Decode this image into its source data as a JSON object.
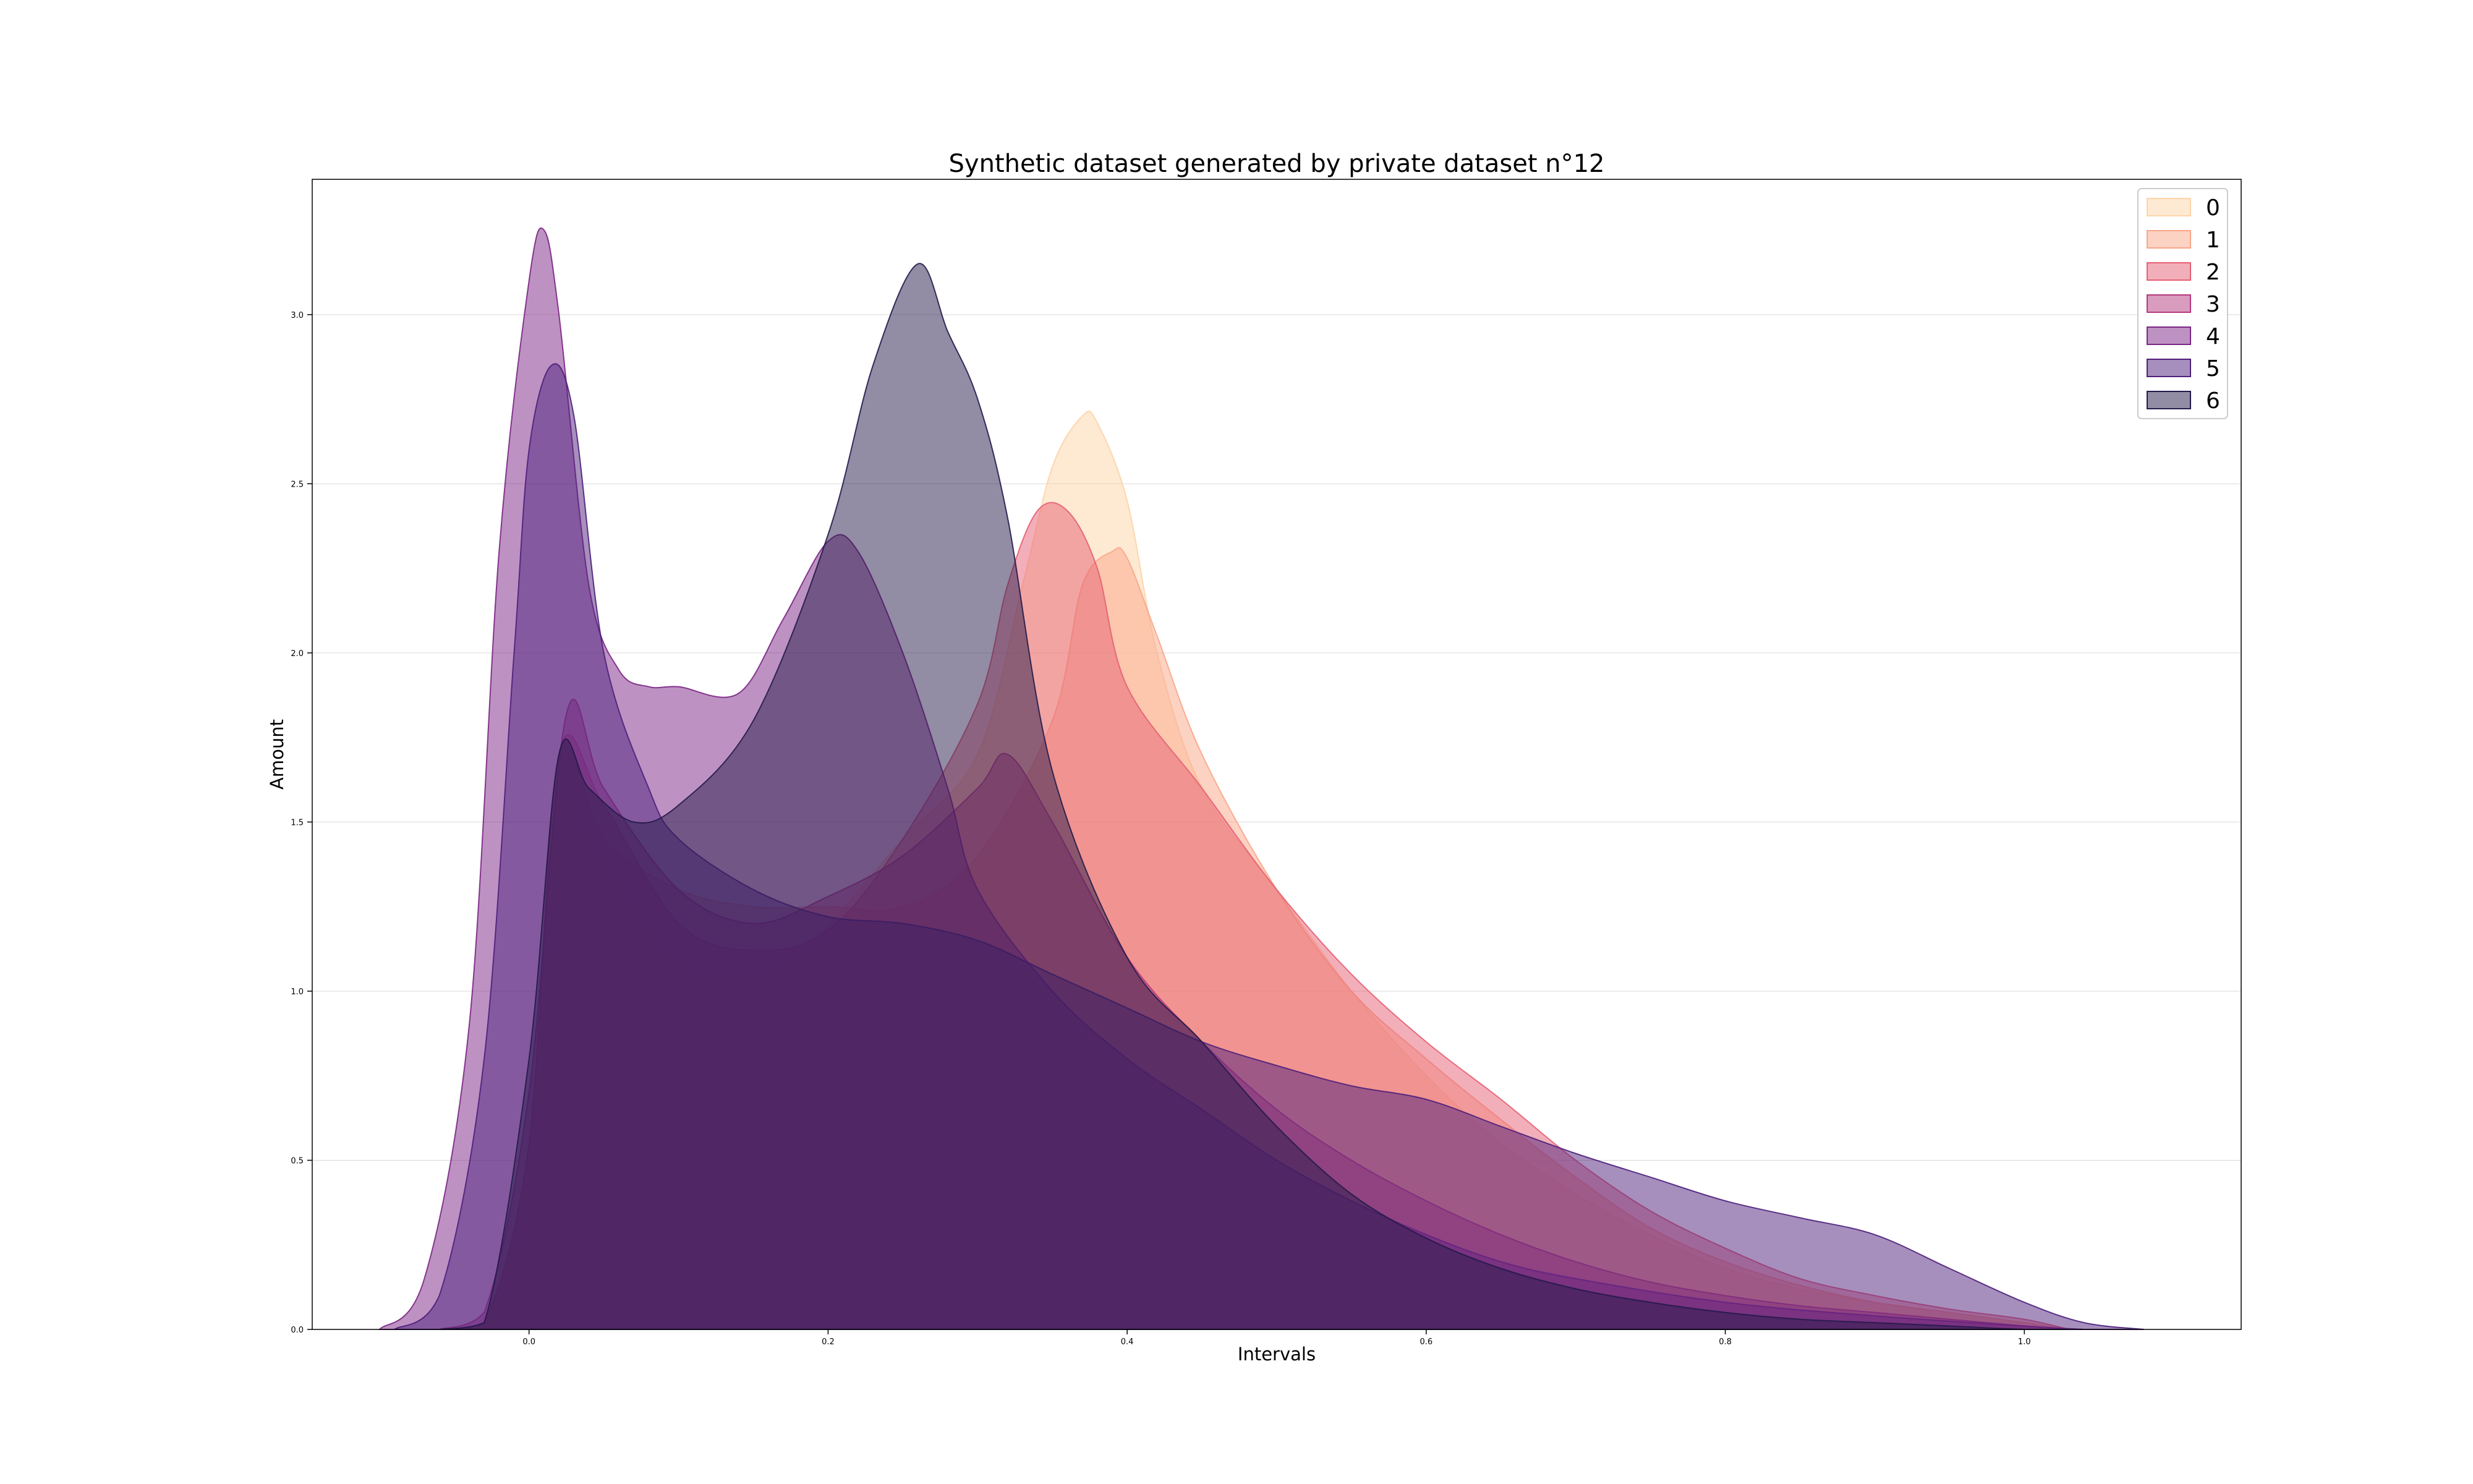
{
  "chart_data": {
    "type": "area",
    "title": "Synthetic dataset generated by private dataset n°12",
    "xlabel": "Intervals",
    "ylabel": "Amount",
    "xlim": [
      -0.145,
      1.145
    ],
    "ylim": [
      0,
      3.4
    ],
    "xticks": [
      "0.0",
      "0.2",
      "0.4",
      "0.6",
      "0.8",
      "1.0"
    ],
    "yticks": [
      "0.0",
      "0.5",
      "1.0",
      "1.5",
      "2.0",
      "2.5",
      "3.0"
    ],
    "grid": "horizontal",
    "legend_position": "top-right",
    "series": [
      {
        "name": "0",
        "color": "#fdd4a8",
        "x": [
          -0.06,
          -0.03,
          0.0,
          0.02,
          0.05,
          0.1,
          0.15,
          0.2,
          0.25,
          0.3,
          0.33,
          0.35,
          0.37,
          0.38,
          0.4,
          0.42,
          0.45,
          0.5,
          0.55,
          0.6,
          0.65,
          0.7,
          0.75,
          0.8,
          0.85,
          0.9,
          0.95,
          1.0,
          1.03
        ],
        "y": [
          0.0,
          0.02,
          0.5,
          1.55,
          1.4,
          1.1,
          1.05,
          1.2,
          1.45,
          1.7,
          2.2,
          2.55,
          2.7,
          2.68,
          2.45,
          2.0,
          1.6,
          1.3,
          1.0,
          0.75,
          0.55,
          0.4,
          0.28,
          0.18,
          0.12,
          0.08,
          0.05,
          0.02,
          0.0
        ]
      },
      {
        "name": "1",
        "color": "#f9a688",
        "x": [
          -0.06,
          -0.03,
          0.0,
          0.02,
          0.05,
          0.1,
          0.15,
          0.2,
          0.25,
          0.3,
          0.35,
          0.37,
          0.39,
          0.4,
          0.42,
          0.45,
          0.5,
          0.55,
          0.6,
          0.65,
          0.7,
          0.75,
          0.8,
          0.85,
          0.9,
          0.95,
          1.0,
          1.03
        ],
        "y": [
          0.0,
          0.02,
          0.55,
          1.7,
          1.45,
          1.3,
          1.25,
          1.25,
          1.25,
          1.4,
          1.8,
          2.2,
          2.3,
          2.28,
          2.05,
          1.7,
          1.3,
          1.0,
          0.8,
          0.62,
          0.45,
          0.3,
          0.2,
          0.13,
          0.08,
          0.05,
          0.02,
          0.0
        ]
      },
      {
        "name": "2",
        "color": "#e55f73",
        "x": [
          -0.06,
          -0.03,
          0.0,
          0.02,
          0.05,
          0.1,
          0.15,
          0.2,
          0.25,
          0.3,
          0.32,
          0.34,
          0.36,
          0.38,
          0.4,
          0.45,
          0.5,
          0.55,
          0.6,
          0.65,
          0.7,
          0.75,
          0.8,
          0.85,
          0.9,
          0.95,
          1.0,
          1.03
        ],
        "y": [
          0.0,
          0.02,
          0.55,
          1.7,
          1.55,
          1.2,
          1.12,
          1.18,
          1.45,
          1.85,
          2.2,
          2.42,
          2.42,
          2.25,
          1.9,
          1.6,
          1.3,
          1.05,
          0.85,
          0.68,
          0.5,
          0.35,
          0.24,
          0.15,
          0.1,
          0.06,
          0.03,
          0.0
        ]
      },
      {
        "name": "3",
        "color": "#b4387e",
        "x": [
          -0.06,
          -0.03,
          0.0,
          0.025,
          0.05,
          0.1,
          0.15,
          0.2,
          0.25,
          0.3,
          0.32,
          0.35,
          0.4,
          0.45,
          0.5,
          0.55,
          0.6,
          0.65,
          0.7,
          0.75,
          0.8,
          0.85,
          0.9,
          0.95,
          1.0,
          1.03
        ],
        "y": [
          0.0,
          0.05,
          0.7,
          1.82,
          1.6,
          1.3,
          1.2,
          1.28,
          1.4,
          1.6,
          1.7,
          1.5,
          1.1,
          0.85,
          0.65,
          0.5,
          0.38,
          0.28,
          0.2,
          0.14,
          0.1,
          0.07,
          0.05,
          0.03,
          0.01,
          0.0
        ]
      },
      {
        "name": "4",
        "color": "#7c2585",
        "x": [
          -0.1,
          -0.07,
          -0.04,
          -0.02,
          0.0,
          0.01,
          0.02,
          0.04,
          0.06,
          0.08,
          0.1,
          0.14,
          0.17,
          0.2,
          0.22,
          0.25,
          0.28,
          0.3,
          0.35,
          0.4,
          0.45,
          0.5,
          0.55,
          0.6,
          0.65,
          0.7,
          0.8,
          0.9,
          1.0,
          1.04
        ],
        "y": [
          0.0,
          0.15,
          0.9,
          2.3,
          3.1,
          3.25,
          3.0,
          2.2,
          1.95,
          1.9,
          1.9,
          1.88,
          2.1,
          2.33,
          2.3,
          2.0,
          1.6,
          1.3,
          1.0,
          0.8,
          0.65,
          0.5,
          0.38,
          0.28,
          0.2,
          0.15,
          0.08,
          0.04,
          0.01,
          0.0
        ]
      },
      {
        "name": "5",
        "color": "#4e1f7c",
        "x": [
          -0.09,
          -0.06,
          -0.03,
          -0.01,
          0.0,
          0.015,
          0.03,
          0.05,
          0.08,
          0.1,
          0.15,
          0.2,
          0.25,
          0.3,
          0.35,
          0.4,
          0.45,
          0.5,
          0.55,
          0.6,
          0.65,
          0.7,
          0.75,
          0.8,
          0.85,
          0.9,
          0.95,
          1.0,
          1.04,
          1.08
        ],
        "y": [
          0.0,
          0.1,
          0.8,
          2.0,
          2.6,
          2.85,
          2.7,
          2.0,
          1.6,
          1.45,
          1.3,
          1.22,
          1.2,
          1.15,
          1.05,
          0.95,
          0.85,
          0.78,
          0.72,
          0.68,
          0.6,
          0.52,
          0.45,
          0.38,
          0.33,
          0.28,
          0.18,
          0.08,
          0.02,
          0.0
        ]
      },
      {
        "name": "6",
        "color": "#251a4a",
        "x": [
          -0.06,
          -0.03,
          0.0,
          0.02,
          0.04,
          0.07,
          0.1,
          0.15,
          0.2,
          0.23,
          0.26,
          0.28,
          0.3,
          0.32,
          0.35,
          0.4,
          0.45,
          0.5,
          0.55,
          0.6,
          0.65,
          0.7,
          0.75,
          0.8,
          0.85,
          0.9,
          0.95,
          1.0,
          1.03
        ],
        "y": [
          0.0,
          0.02,
          0.8,
          1.7,
          1.6,
          1.5,
          1.55,
          1.8,
          2.35,
          2.85,
          3.15,
          2.95,
          2.75,
          2.4,
          1.65,
          1.1,
          0.85,
          0.6,
          0.4,
          0.27,
          0.18,
          0.12,
          0.08,
          0.05,
          0.03,
          0.02,
          0.01,
          0.0,
          0.0
        ]
      }
    ]
  }
}
